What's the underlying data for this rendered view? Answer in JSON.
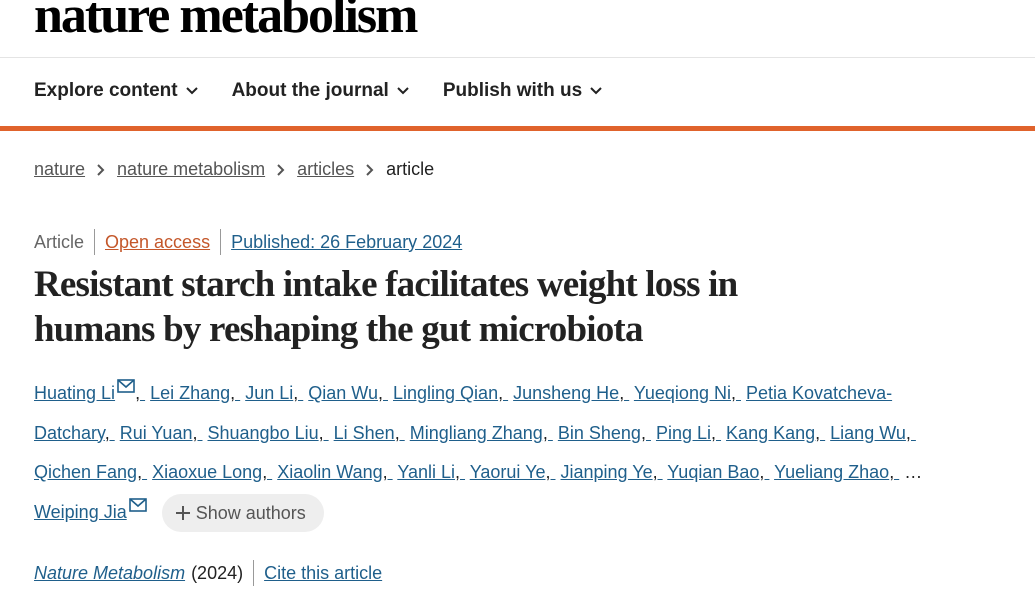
{
  "header": {
    "logo": "nature metabolism"
  },
  "nav": {
    "items": [
      "Explore content",
      "About the journal",
      "Publish with us"
    ]
  },
  "breadcrumb": [
    "nature",
    "nature metabolism",
    "articles",
    "article"
  ],
  "article": {
    "type": "Article",
    "access": "Open access",
    "published": "Published: 26 February 2024",
    "title": "Resistant starch intake facilitates weight loss in humans by reshaping the gut microbiota",
    "authors": [
      "Huating Li",
      "Lei Zhang",
      "Jun Li",
      "Qian Wu",
      "Lingling Qian",
      "Junsheng He",
      "Yueqiong Ni",
      "Petia Kovatcheva-Datchary",
      "Rui Yuan",
      "Shuangbo Liu",
      "Li Shen",
      "Mingliang Zhang",
      "Bin Sheng",
      "Ping Li",
      "Kang Kang",
      "Liang Wu",
      "Qichen Fang",
      "Xiaoxue Long",
      "Xiaolin Wang",
      "Yanli Li",
      "Yaorui Ye",
      "Jianping Ye",
      "Yuqian Bao",
      "Yueliang Zhao",
      "Weiping Jia"
    ],
    "ellipsis": "…",
    "show_authors": "Show authors",
    "journal": "Nature Metabolism",
    "year": "(2024)",
    "cite": "Cite this article"
  }
}
